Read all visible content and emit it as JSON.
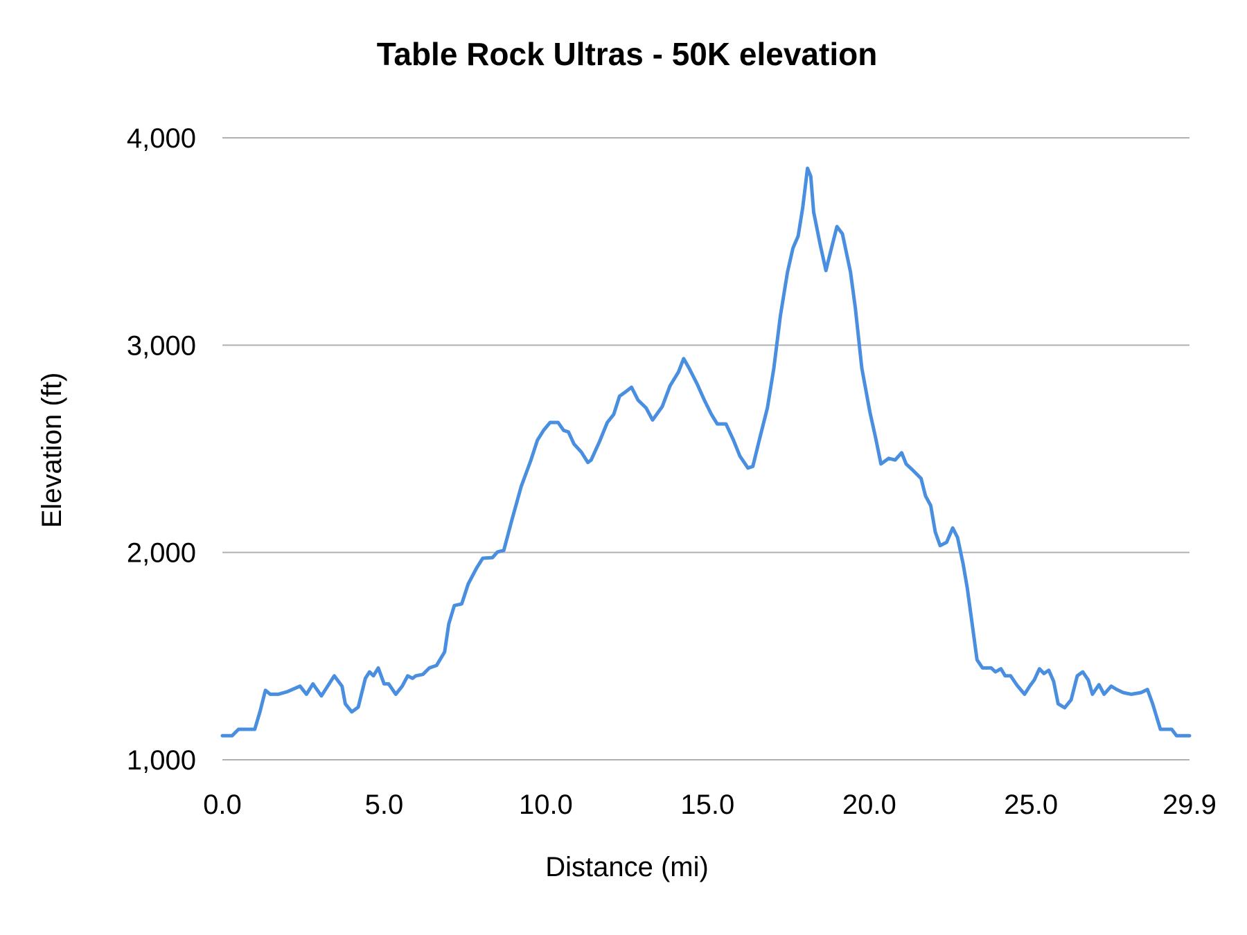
{
  "chart_data": {
    "type": "line",
    "title": "Table Rock Ultras - 50K elevation",
    "xlabel": "Distance (mi)",
    "ylabel": "Elevation (ft)",
    "xlim": [
      0,
      29.9
    ],
    "ylim": [
      1000,
      4000
    ],
    "x_ticks": [
      "0.0",
      "5.0",
      "10.0",
      "15.0",
      "20.0",
      "25.0",
      "29.9"
    ],
    "x_tick_values": [
      0,
      5,
      10,
      15,
      20,
      25,
      29.9
    ],
    "y_ticks": [
      "1,000",
      "2,000",
      "3,000",
      "4,000"
    ],
    "y_tick_values": [
      1000,
      2000,
      3000,
      4000
    ],
    "grid": "horizontal",
    "legend": "none",
    "line_color": "#4a8fdf",
    "grid_color": "#b0b0b0",
    "series": [
      {
        "x": [
          0,
          0.3,
          0.5,
          1.0,
          1.16,
          1.33,
          1.48,
          1.73,
          2.0,
          2.4,
          2.6,
          2.8,
          3.06,
          3.46,
          3.7,
          3.8,
          4.0,
          4.2,
          4.42,
          4.55,
          4.67,
          4.82,
          5.0,
          5.14,
          5.36,
          5.56,
          5.73,
          5.88,
          5.98,
          6.2,
          6.4,
          6.62,
          6.87,
          7.0,
          7.17,
          7.4,
          7.6,
          7.86,
          8.05,
          8.35,
          8.5,
          8.7,
          8.95,
          9.24,
          9.54,
          9.74,
          9.93,
          10.13,
          10.38,
          10.55,
          10.7,
          10.87,
          11.1,
          11.3,
          11.4,
          11.66,
          11.9,
          12.1,
          12.28,
          12.45,
          12.65,
          12.85,
          13.1,
          13.3,
          13.6,
          13.84,
          14.1,
          14.26,
          14.43,
          14.68,
          14.9,
          15.12,
          15.3,
          15.57,
          15.8,
          16.0,
          16.25,
          16.4,
          16.6,
          16.85,
          17.05,
          17.25,
          17.47,
          17.64,
          17.8,
          17.94,
          18.09,
          18.19,
          18.28,
          18.48,
          18.66,
          18.83,
          19.0,
          19.17,
          19.42,
          19.57,
          19.77,
          20.02,
          20.2,
          20.36,
          20.6,
          20.8,
          21.0,
          21.14,
          21.35,
          21.6,
          21.74,
          21.9,
          22.04,
          22.19,
          22.39,
          22.58,
          22.73,
          22.9,
          23.03,
          23.18,
          23.33,
          23.5,
          23.77,
          23.9,
          24.07,
          24.2,
          24.37,
          24.57,
          24.8,
          24.96,
          25.1,
          25.26,
          25.4,
          25.55,
          25.7,
          25.84,
          26.04,
          26.24,
          26.43,
          26.6,
          26.77,
          26.9,
          27.1,
          27.26,
          27.48,
          27.65,
          27.85,
          28.1,
          28.4,
          28.6,
          28.76,
          29.0,
          29.35,
          29.5,
          29.9
        ],
        "y": [
          1116,
          1116,
          1147,
          1147,
          1231,
          1335,
          1316,
          1316,
          1328,
          1355,
          1316,
          1366,
          1308,
          1405,
          1355,
          1270,
          1231,
          1254,
          1393,
          1424,
          1405,
          1443,
          1366,
          1366,
          1316,
          1355,
          1405,
          1393,
          1405,
          1412,
          1443,
          1455,
          1520,
          1655,
          1744,
          1752,
          1848,
          1925,
          1972,
          1975,
          2002,
          2010,
          2157,
          2319,
          2446,
          2542,
          2589,
          2627,
          2627,
          2589,
          2581,
          2523,
          2484,
          2434,
          2446,
          2535,
          2627,
          2666,
          2754,
          2773,
          2797,
          2735,
          2697,
          2639,
          2704,
          2804,
          2870,
          2935,
          2889,
          2812,
          2735,
          2666,
          2620,
          2620,
          2542,
          2465,
          2407,
          2415,
          2542,
          2697,
          2889,
          3140,
          3352,
          3468,
          3526,
          3661,
          3853,
          3815,
          3642,
          3487,
          3360,
          3468,
          3572,
          3537,
          3352,
          3178,
          2889,
          2677,
          2550,
          2427,
          2454,
          2446,
          2481,
          2427,
          2396,
          2357,
          2272,
          2226,
          2099,
          2033,
          2049,
          2118,
          2072,
          1945,
          1829,
          1655,
          1482,
          1443,
          1443,
          1424,
          1439,
          1405,
          1405,
          1359,
          1316,
          1355,
          1385,
          1439,
          1416,
          1432,
          1378,
          1270,
          1251,
          1289,
          1405,
          1424,
          1385,
          1316,
          1362,
          1316,
          1355,
          1339,
          1324,
          1316,
          1324,
          1339,
          1270,
          1147,
          1147,
          1116,
          1116
        ]
      }
    ]
  }
}
